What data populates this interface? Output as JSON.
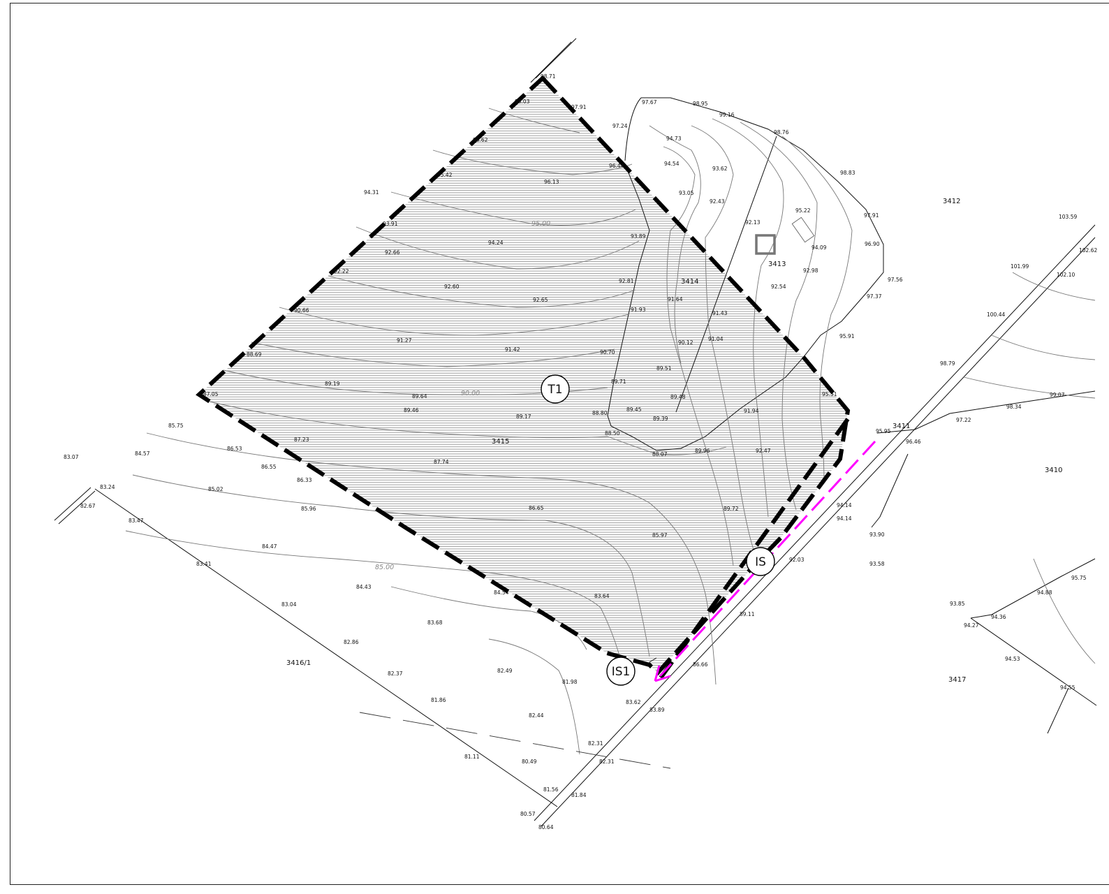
{
  "parcels": [
    "3412",
    "3413",
    "3414",
    "3415",
    "3411",
    "3410",
    "3416/1",
    "3417"
  ],
  "markers": [
    "T1",
    "IS",
    "IS1"
  ],
  "contour_labels": [
    "95.00",
    "90.00",
    "85.00"
  ],
  "colors": {
    "boundary": "#000000",
    "route": "#ff00ff",
    "hatch": "#555555"
  },
  "spot_heights": [
    "98.71",
    "98.03",
    "97.91",
    "97.24",
    "96.62",
    "96.44",
    "96.13",
    "95.42",
    "94.31",
    "93.91",
    "92.66",
    "92.22",
    "90.66",
    "88.69",
    "87.05",
    "85.75",
    "84.57",
    "83.07",
    "83.24",
    "82.67",
    "83.47",
    "83.41",
    "83.04",
    "82.86",
    "82.37",
    "81.86",
    "81.11",
    "80.49",
    "81.56",
    "80.57",
    "80.64",
    "81.84",
    "82.31",
    "82.31",
    "83.62",
    "83.89",
    "86.66",
    "89.11",
    "92.03",
    "94.14",
    "94.14",
    "93.90",
    "93.58",
    "96.46",
    "95.95",
    "97.22",
    "98.34",
    "99.07",
    "98.79",
    "100.44",
    "101.99",
    "102.10",
    "102.62",
    "103.59",
    "97.67",
    "98.95",
    "99.16",
    "98.76",
    "94.73",
    "94.54",
    "93.62",
    "93.05",
    "92.43",
    "92.13",
    "95.22",
    "94.09",
    "92.98",
    "92.54",
    "98.83",
    "97.91",
    "96.90",
    "97.56",
    "97.37",
    "95.91",
    "95.31",
    "93.89",
    "92.81",
    "91.93",
    "91.64",
    "91.43",
    "90.12",
    "91.04",
    "90.70",
    "89.51",
    "89.71",
    "89.48",
    "88.80",
    "89.45",
    "89.39",
    "88.50",
    "88.07",
    "89.96",
    "91.94",
    "92.47",
    "89.72",
    "85.97",
    "86.65",
    "83.64",
    "84.54",
    "84.43",
    "83.68",
    "82.49",
    "81.98",
    "82.44",
    "84.47",
    "85.02",
    "85.96",
    "86.33",
    "86.55",
    "86.53",
    "87.23",
    "87.74",
    "89.17",
    "89.46",
    "89.64",
    "89.19",
    "91.27",
    "91.42",
    "92.65",
    "92.60",
    "94.24",
    "93.85",
    "94.36",
    "94.27",
    "94.53",
    "94.55",
    "94.88",
    "95.75"
  ]
}
